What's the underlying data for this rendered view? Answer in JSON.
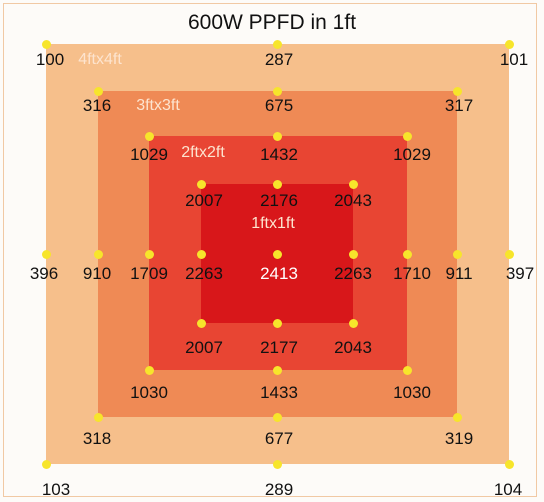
{
  "title": "600W PPFD in 1ft",
  "colors": {
    "zone_4ft": "#f6bf8b",
    "zone_3ft": "#ef8a55",
    "zone_2ft": "#e84533",
    "zone_1ft": "#d8171a",
    "dot": "#f7e52b",
    "value_text": "#111111",
    "center_value_text": "#ffffff",
    "zone_label_text": "#fde4cf"
  },
  "zones": [
    {
      "id": "4ft",
      "label": "4ftx4ft"
    },
    {
      "id": "3ft",
      "label": "3ftx3ft"
    },
    {
      "id": "2ft",
      "label": "2ftx2ft"
    },
    {
      "id": "1ft",
      "label": "1ftx1ft"
    }
  ],
  "readings": [
    {
      "row": "r1",
      "col": "c1",
      "value": "100"
    },
    {
      "row": "r1",
      "col": "c5",
      "value": "287"
    },
    {
      "row": "r1",
      "col": "c9",
      "value": "101"
    },
    {
      "row": "r2",
      "col": "c2",
      "value": "316"
    },
    {
      "row": "r2",
      "col": "c5",
      "value": "675"
    },
    {
      "row": "r2",
      "col": "c8",
      "value": "317"
    },
    {
      "row": "r3",
      "col": "c3",
      "value": "1029"
    },
    {
      "row": "r3",
      "col": "c5",
      "value": "1432"
    },
    {
      "row": "r3",
      "col": "c7",
      "value": "1029"
    },
    {
      "row": "r4",
      "col": "c4",
      "value": "2007"
    },
    {
      "row": "r4",
      "col": "c5",
      "value": "2176"
    },
    {
      "row": "r4",
      "col": "c6",
      "value": "2043"
    },
    {
      "row": "r5",
      "col": "c1",
      "value": "396"
    },
    {
      "row": "r5",
      "col": "c2",
      "value": "910"
    },
    {
      "row": "r5",
      "col": "c3",
      "value": "1709"
    },
    {
      "row": "r5",
      "col": "c4",
      "value": "2263"
    },
    {
      "row": "r5",
      "col": "c5",
      "value": "2413"
    },
    {
      "row": "r5",
      "col": "c6",
      "value": "2263"
    },
    {
      "row": "r5",
      "col": "c7",
      "value": "1710"
    },
    {
      "row": "r5",
      "col": "c8",
      "value": "911"
    },
    {
      "row": "r5",
      "col": "c9",
      "value": "397"
    },
    {
      "row": "r6",
      "col": "c4",
      "value": "2007"
    },
    {
      "row": "r6",
      "col": "c5",
      "value": "2177"
    },
    {
      "row": "r6",
      "col": "c6",
      "value": "2043"
    },
    {
      "row": "r7",
      "col": "c3",
      "value": "1030"
    },
    {
      "row": "r7",
      "col": "c5",
      "value": "1433"
    },
    {
      "row": "r7",
      "col": "c7",
      "value": "1030"
    },
    {
      "row": "r8",
      "col": "c2",
      "value": "318"
    },
    {
      "row": "r8",
      "col": "c5",
      "value": "677"
    },
    {
      "row": "r8",
      "col": "c8",
      "value": "319"
    },
    {
      "row": "r9",
      "col": "c1",
      "value": "103"
    },
    {
      "row": "r9",
      "col": "c5",
      "value": "289"
    },
    {
      "row": "r9",
      "col": "c9",
      "value": "104"
    }
  ]
}
